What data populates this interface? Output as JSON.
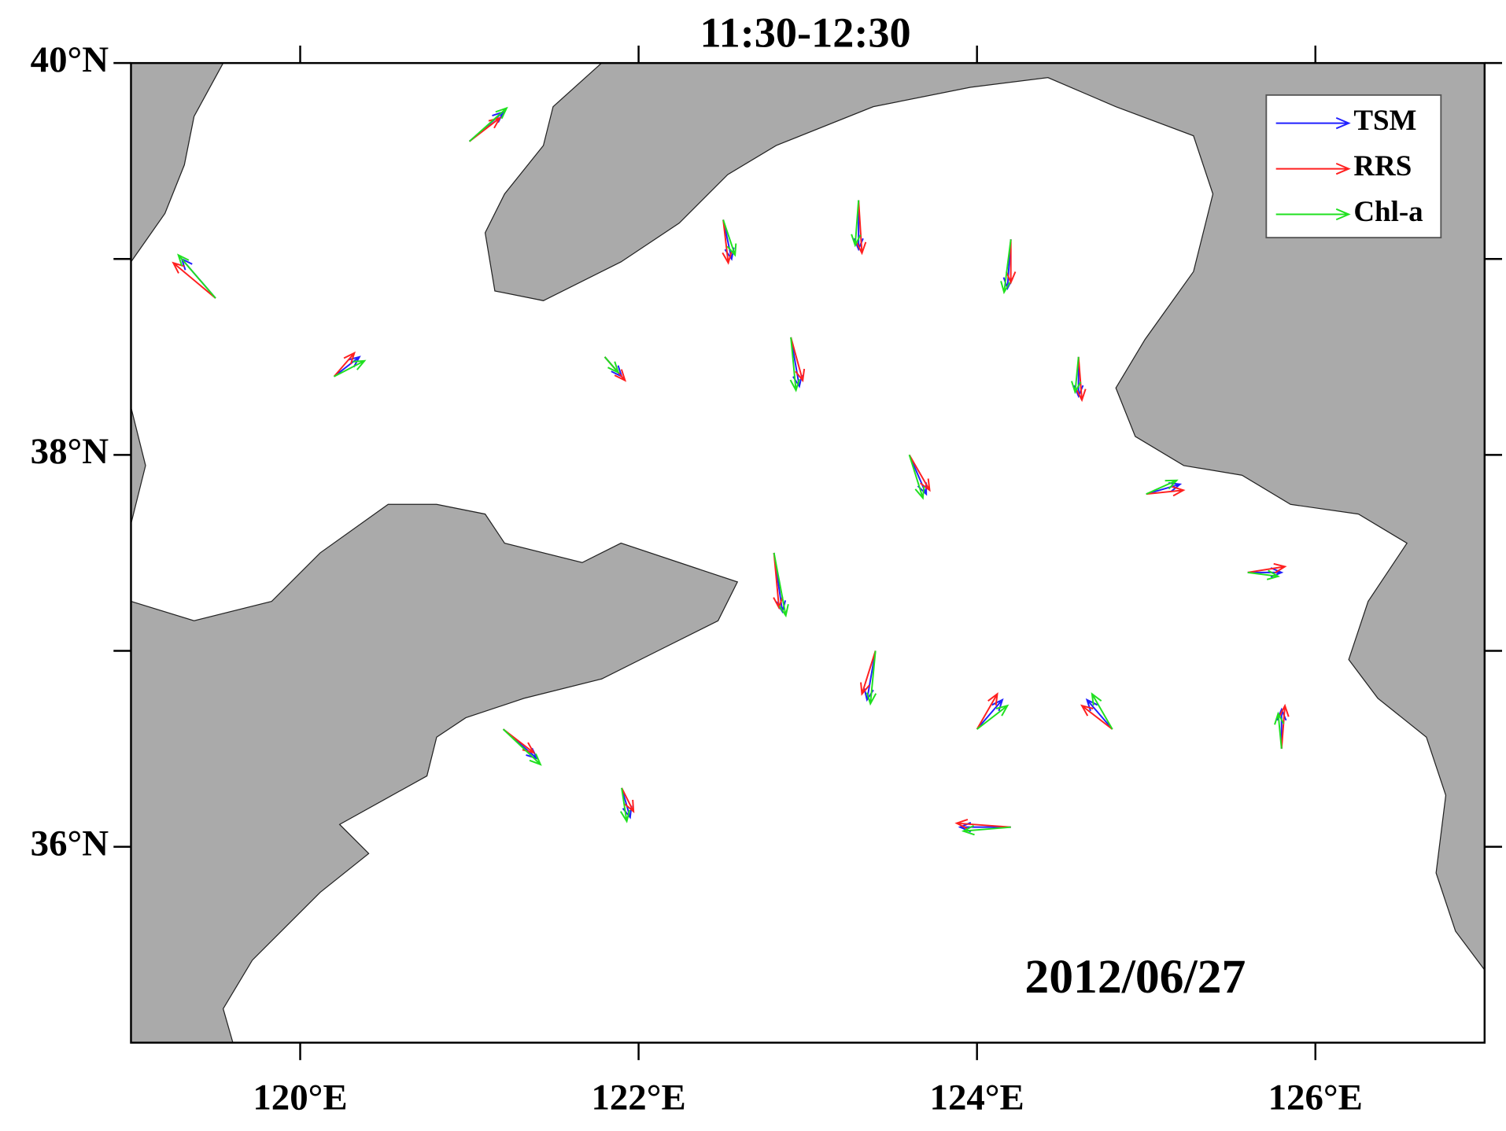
{
  "chart_data": {
    "type": "vector",
    "title": "11:30-12:30",
    "annotation": "2012/06/27",
    "xlim": [
      119,
      127
    ],
    "ylim": [
      35,
      40
    ],
    "xticks": [
      {
        "value": 120,
        "label": "120°E"
      },
      {
        "value": 122,
        "label": "122°E"
      },
      {
        "value": 124,
        "label": "124°E"
      },
      {
        "value": 126,
        "label": "126°E"
      }
    ],
    "yticks": [
      {
        "value": 40,
        "label": "40°N"
      },
      {
        "value": 38,
        "label": "38°N"
      },
      {
        "value": 36,
        "label": "36°N"
      }
    ],
    "yminor_ticks": [
      39,
      37
    ],
    "legend": "upper right",
    "x": [
      119.5,
      120.2,
      121.0,
      121.8,
      122.5,
      122.9,
      123.3,
      123.6,
      124.2,
      124.6,
      125.0,
      125.6,
      122.8,
      123.4,
      124.0,
      124.8,
      121.2,
      121.9,
      125.8,
      124.2
    ],
    "y": [
      38.8,
      38.4,
      39.6,
      38.5,
      39.2,
      38.6,
      39.3,
      38.0,
      39.1,
      38.5,
      37.8,
      37.4,
      37.5,
      37.0,
      36.6,
      36.6,
      36.6,
      36.3,
      36.5,
      36.1
    ],
    "series": [
      {
        "name": "TSM",
        "color": "#2020ff",
        "u": [
          -0.2,
          0.15,
          0.2,
          0.1,
          0.05,
          0.05,
          0.0,
          0.1,
          -0.02,
          0.0,
          0.2,
          0.2,
          0.05,
          -0.05,
          0.15,
          -0.15,
          0.2,
          0.05,
          0.0,
          -0.3
        ],
        "v": [
          0.2,
          0.1,
          0.15,
          -0.1,
          -0.2,
          -0.25,
          -0.25,
          -0.2,
          -0.25,
          -0.2,
          0.05,
          0.0,
          -0.3,
          -0.25,
          0.15,
          0.15,
          -0.15,
          -0.15,
          0.2,
          0.0
        ]
      },
      {
        "name": "RRS",
        "color": "#ff2020",
        "u": [
          -0.25,
          0.12,
          0.18,
          0.12,
          0.03,
          0.07,
          0.02,
          0.12,
          0.0,
          0.02,
          0.22,
          0.22,
          0.03,
          -0.08,
          0.12,
          -0.18,
          0.18,
          0.07,
          0.02,
          -0.32
        ],
        "v": [
          0.18,
          0.12,
          0.12,
          -0.12,
          -0.22,
          -0.22,
          -0.27,
          -0.18,
          -0.22,
          -0.22,
          0.02,
          0.03,
          -0.28,
          -0.22,
          0.18,
          0.12,
          -0.12,
          -0.12,
          0.22,
          0.02
        ]
      },
      {
        "name": "Chl-a",
        "color": "#20e020",
        "u": [
          -0.22,
          0.18,
          0.22,
          0.08,
          0.07,
          0.03,
          -0.02,
          0.08,
          -0.04,
          -0.02,
          0.18,
          0.18,
          0.07,
          -0.03,
          0.18,
          -0.12,
          0.22,
          0.03,
          -0.02,
          -0.28
        ],
        "v": [
          0.22,
          0.08,
          0.17,
          -0.08,
          -0.18,
          -0.27,
          -0.23,
          -0.22,
          -0.27,
          -0.18,
          0.07,
          -0.02,
          -0.32,
          -0.27,
          0.12,
          0.18,
          -0.18,
          -0.17,
          0.18,
          -0.02
        ]
      }
    ]
  }
}
